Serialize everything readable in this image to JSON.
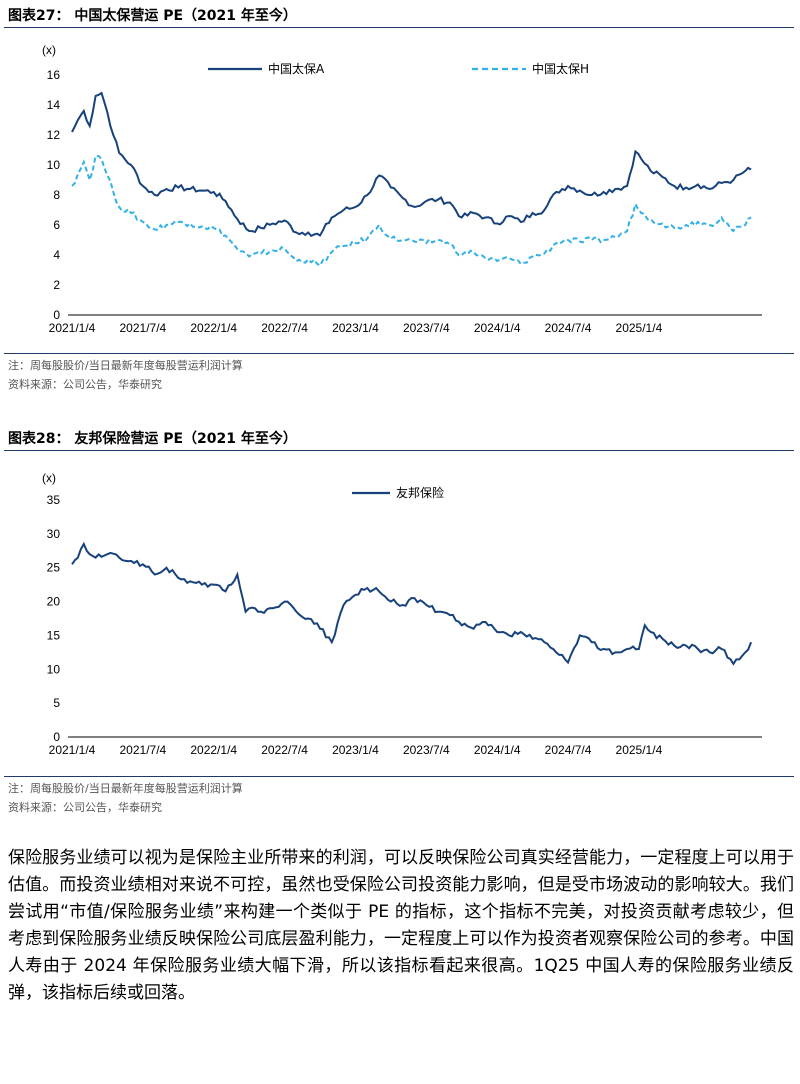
{
  "figures": [
    {
      "title": "图表27：  中国太保营运 PE（2021 年至今）",
      "note": "注：周每股股价/当日最新年度每股营运利润计算",
      "source": "资料来源：公司公告，华泰研究"
    },
    {
      "title": "图表28：  友邦保险营运 PE（2021 年至今）",
      "note": "注：周每股股价/当日最新年度每股营运利润计算",
      "source": "资料来源：公司公告，华泰研究"
    }
  ],
  "chart_data": [
    {
      "type": "line",
      "unit_label": "(x)",
      "ylim": [
        0,
        16
      ],
      "yticks": [
        "0",
        "2",
        "4",
        "6",
        "8",
        "10",
        "12",
        "14",
        "16"
      ],
      "xlim": [
        0,
        58
      ],
      "x_unit": "months since 2021/1/4",
      "xtick_labels": [
        "2021/1/4",
        "2021/7/4",
        "2022/1/4",
        "2022/7/4",
        "2023/1/4",
        "2023/7/4",
        "2024/1/4",
        "2024/7/4",
        "2025/1/4"
      ],
      "colors": {
        "a": "#17427c",
        "h": "#33b0e6"
      },
      "series": [
        {
          "name": "中国太保A",
          "style": "solid",
          "x": [
            0,
            0.5,
            1,
            1.5,
            2,
            2.5,
            3,
            3.5,
            4,
            5,
            6,
            7,
            8,
            9,
            10,
            11,
            12,
            13,
            14,
            15,
            16,
            17,
            18,
            19,
            20,
            21,
            22,
            23,
            24,
            25,
            26,
            27,
            28,
            29,
            30,
            31,
            32,
            33,
            34,
            35,
            36,
            37,
            38,
            39,
            40,
            41,
            42,
            43,
            44,
            45,
            46,
            47,
            47.7,
            48.2,
            49,
            50,
            51,
            52,
            53,
            54,
            55,
            56,
            57,
            57.5
          ],
          "values": [
            12.2,
            13.0,
            13.6,
            12.6,
            14.6,
            14.8,
            13.5,
            12.0,
            10.8,
            10.0,
            8.6,
            8.0,
            8.4,
            8.5,
            8.4,
            8.3,
            8.2,
            7.6,
            6.4,
            5.6,
            5.8,
            6.1,
            6.3,
            5.5,
            5.5,
            5.3,
            6.5,
            7.0,
            7.2,
            8.0,
            9.3,
            8.5,
            7.8,
            7.2,
            7.6,
            7.7,
            7.5,
            6.5,
            6.8,
            6.5,
            6.1,
            6.6,
            6.2,
            6.8,
            7.0,
            8.2,
            8.6,
            8.3,
            8.0,
            8.2,
            8.4,
            8.6,
            10.9,
            10.4,
            9.6,
            9.2,
            8.6,
            8.5,
            8.7,
            8.4,
            8.8,
            9.0,
            9.6,
            9.7
          ]
        },
        {
          "name": "中国太保H",
          "style": "dashed",
          "x": [
            0,
            0.5,
            1,
            1.5,
            2,
            2.5,
            3,
            3.5,
            4,
            5,
            6,
            7,
            8,
            9,
            10,
            11,
            12,
            13,
            14,
            15,
            16,
            17,
            18,
            19,
            20,
            21,
            22,
            23,
            24,
            25,
            26,
            27,
            28,
            29,
            30,
            31,
            32,
            33,
            34,
            35,
            36,
            37,
            38,
            39,
            40,
            41,
            42,
            43,
            44,
            45,
            46,
            47,
            47.7,
            48.2,
            49,
            50,
            51,
            52,
            53,
            54,
            55,
            56,
            57,
            57.5
          ],
          "values": [
            8.6,
            9.4,
            10.2,
            9.0,
            10.6,
            10.4,
            9.3,
            8.2,
            7.2,
            6.8,
            6.2,
            5.7,
            6.0,
            6.2,
            6.1,
            5.9,
            5.8,
            5.3,
            4.4,
            3.9,
            4.1,
            4.3,
            4.4,
            3.6,
            3.7,
            3.3,
            4.2,
            4.6,
            4.8,
            5.1,
            6.0,
            5.1,
            5.0,
            4.9,
            4.8,
            5.0,
            4.7,
            4.0,
            4.2,
            3.8,
            3.6,
            3.8,
            3.4,
            3.9,
            4.1,
            4.8,
            5.0,
            4.9,
            5.0,
            5.0,
            5.2,
            5.6,
            7.4,
            6.8,
            6.4,
            6.1,
            5.8,
            6.0,
            6.2,
            6.0,
            6.5,
            5.6,
            6.0,
            6.5
          ]
        }
      ]
    },
    {
      "type": "line",
      "unit_label": "(x)",
      "ylim": [
        0,
        35
      ],
      "yticks": [
        "0",
        "5",
        "10",
        "15",
        "20",
        "25",
        "30",
        "35"
      ],
      "xlim": [
        0,
        58
      ],
      "x_unit": "months since 2021/1/4",
      "xtick_labels": [
        "2021/1/4",
        "2021/7/4",
        "2022/1/4",
        "2022/7/4",
        "2023/1/4",
        "2023/7/4",
        "2024/1/4",
        "2024/7/4",
        "2025/1/4"
      ],
      "colors": {
        "a": "#17427c"
      },
      "series": [
        {
          "name": "友邦保险",
          "style": "solid",
          "x": [
            0,
            0.5,
            1,
            1.5,
            2,
            3,
            4,
            5,
            6,
            7,
            8,
            9,
            10,
            11,
            12,
            13,
            14,
            14.7,
            15.5,
            16,
            17,
            18,
            19,
            20,
            21,
            22,
            23,
            24,
            25,
            26,
            27,
            28,
            29,
            30,
            31,
            32,
            33,
            34,
            35,
            36,
            37,
            38,
            39,
            40,
            41,
            42,
            43,
            44,
            45,
            46,
            47,
            48,
            48.5,
            49,
            50,
            51,
            52,
            53,
            54,
            55,
            56,
            57,
            57.5
          ],
          "values": [
            25.5,
            26.5,
            28.5,
            27.0,
            26.5,
            27.0,
            26.5,
            26.0,
            25.5,
            24.0,
            25.0,
            23.5,
            23.0,
            22.5,
            22.5,
            21.5,
            24.0,
            18.5,
            19.0,
            18.5,
            19.0,
            20.0,
            18.5,
            17.5,
            16.0,
            14.0,
            19.5,
            21.0,
            22.0,
            21.5,
            20.0,
            19.5,
            20.5,
            19.5,
            18.5,
            18.0,
            16.5,
            16.0,
            17.0,
            15.5,
            15.0,
            15.5,
            14.5,
            14.0,
            12.5,
            11.0,
            15.0,
            14.0,
            13.0,
            12.5,
            13.0,
            13.0,
            16.5,
            15.5,
            14.5,
            13.5,
            13.5,
            13.0,
            12.5,
            13.0,
            10.8,
            12.5,
            14.0
          ]
        }
      ]
    }
  ],
  "paragraph": "保险服务业绩可以视为是保险主业所带来的利润，可以反映保险公司真实经营能力，一定程度上可以用于估值。而投资业绩相对来说不可控，虽然也受保险公司投资能力影响，但是受市场波动的影响较大。我们尝试用“市值/保险服务业绩”来构建一个类似于 PE 的指标，这个指标不完美，对投资贡献考虑较少，但考虑到保险服务业绩反映保险公司底层盈利能力，一定程度上可以作为投资者观察保险公司的参考。中国人寿由于 2024 年保险服务业绩大幅下滑，所以该指标看起来很高。1Q25 中国人寿的保险服务业绩反弹，该指标后续或回落。"
}
